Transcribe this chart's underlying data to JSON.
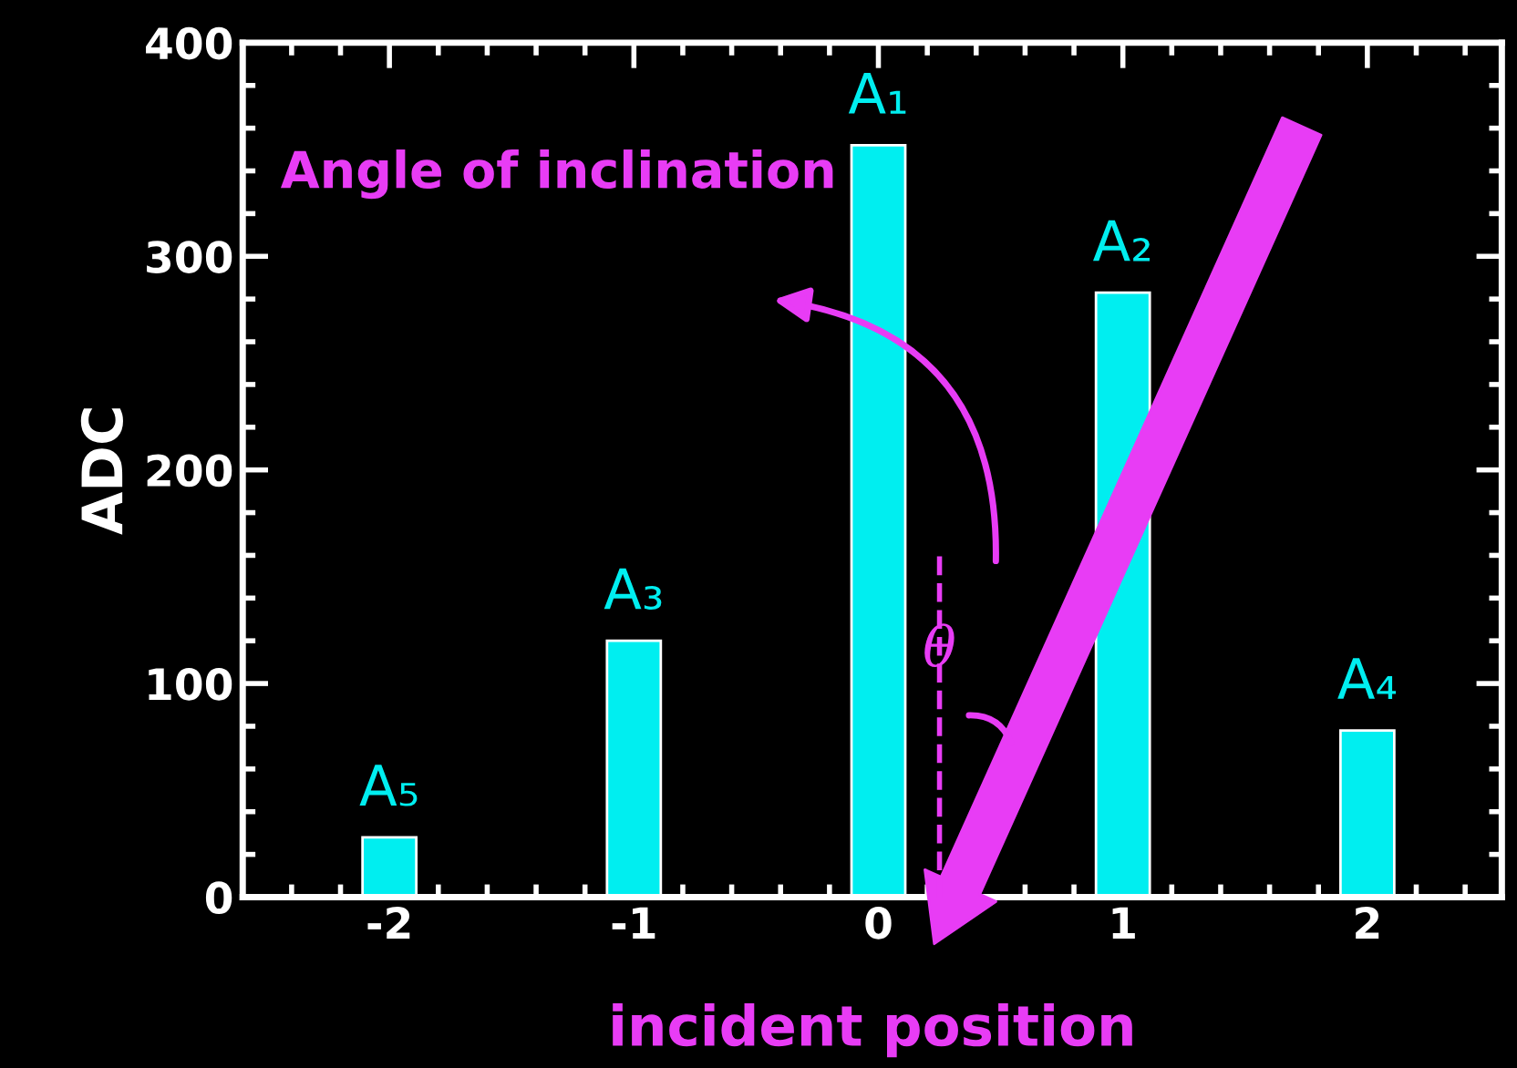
{
  "chart_data": {
    "type": "bar",
    "xlabel": "incident position",
    "ylabel": "ADC",
    "x": [
      -2,
      -1,
      0,
      1,
      2
    ],
    "values": [
      28,
      120,
      352,
      283,
      78
    ],
    "color": "#00eef0",
    "xlim": [
      -2.6,
      2.55
    ],
    "ylim": [
      0,
      400
    ],
    "xticks": [
      -2,
      -1,
      0,
      1,
      2
    ],
    "yticks": [
      0,
      100,
      200,
      300,
      400
    ],
    "grid": false,
    "legend": false,
    "annotations": [
      {
        "text": "A₅",
        "x": -2,
        "y": 28
      },
      {
        "text": "A₃",
        "x": -1,
        "y": 120
      },
      {
        "text": "A₁",
        "x": 0,
        "y": 352
      },
      {
        "text": "A₂",
        "x": 1,
        "y": 283
      },
      {
        "text": "A₄",
        "x": 2,
        "y": 78
      },
      "Angle of inclination",
      "θ"
    ]
  }
}
